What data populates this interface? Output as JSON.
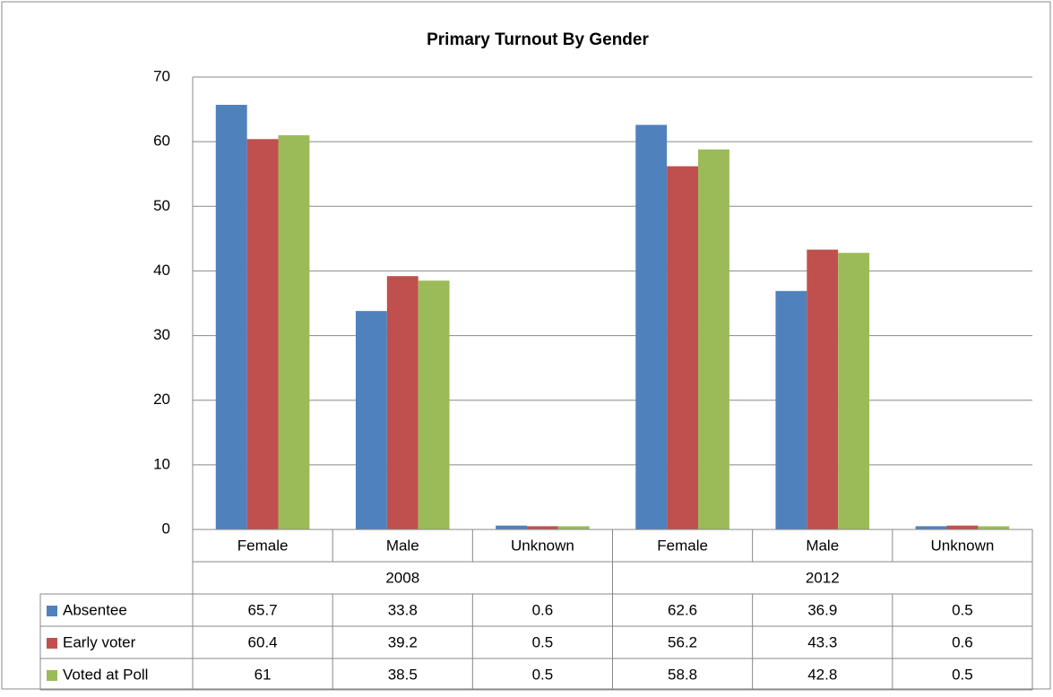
{
  "chart_data": {
    "type": "bar",
    "title": "Primary Turnout By Gender",
    "groups": [
      {
        "label": "2008",
        "categories": [
          "Female",
          "Male",
          "Unknown"
        ]
      },
      {
        "label": "2012",
        "categories": [
          "Female",
          "Male",
          "Unknown"
        ]
      }
    ],
    "series": [
      {
        "name": "Absentee",
        "color": "#4f81bd",
        "values": [
          65.7,
          33.8,
          0.6,
          62.6,
          36.9,
          0.5
        ]
      },
      {
        "name": "Early voter",
        "color": "#c0504d",
        "values": [
          60.4,
          39.2,
          0.5,
          56.2,
          43.3,
          0.6
        ]
      },
      {
        "name": "Voted at Poll",
        "color": "#9bbb59",
        "values": [
          61,
          38.5,
          0.5,
          58.8,
          42.8,
          0.5
        ]
      }
    ],
    "ylim": [
      0,
      70
    ],
    "yticks": [
      0,
      10,
      20,
      30,
      40,
      50,
      60,
      70
    ],
    "grid": true,
    "data_table": true
  }
}
